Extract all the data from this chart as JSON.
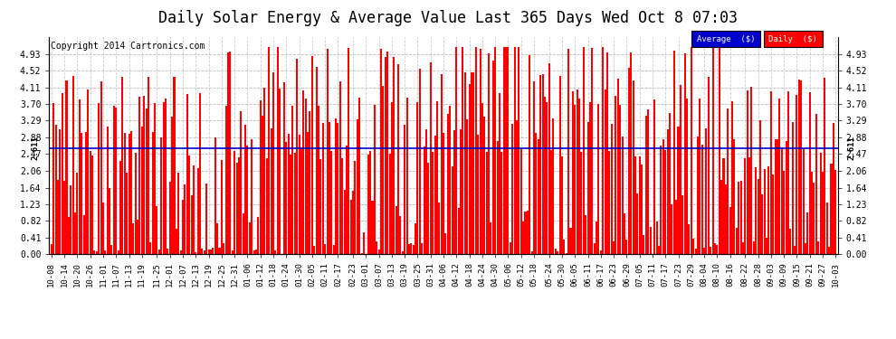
{
  "title": "Daily Solar Energy & Average Value Last 365 Days Wed Oct 8 07:03",
  "copyright": "Copyright 2014 Cartronics.com",
  "average_value": 2.61,
  "average_label": "2.611",
  "ylim": [
    0.0,
    5.34
  ],
  "yticks": [
    0.0,
    0.41,
    0.82,
    1.23,
    1.64,
    2.06,
    2.47,
    2.88,
    3.29,
    3.7,
    4.11,
    4.52,
    4.93
  ],
  "bar_color": "#ff0000",
  "avg_line_color": "#0000cc",
  "background_color": "#ffffff",
  "plot_bg_color": "#ffffff",
  "legend_avg_color": "#0000cc",
  "legend_daily_color": "#ff0000",
  "title_fontsize": 12,
  "xlabel_dates": [
    "10-08",
    "10-14",
    "10-20",
    "10-26",
    "11-01",
    "11-07",
    "11-13",
    "11-19",
    "11-25",
    "12-01",
    "12-07",
    "12-13",
    "12-19",
    "12-25",
    "12-31",
    "01-06",
    "01-12",
    "01-18",
    "01-24",
    "01-30",
    "02-05",
    "02-11",
    "02-17",
    "02-23",
    "03-01",
    "03-07",
    "03-13",
    "03-19",
    "03-25",
    "03-31",
    "04-06",
    "04-12",
    "04-18",
    "04-24",
    "04-30",
    "05-06",
    "05-12",
    "05-18",
    "05-24",
    "05-30",
    "06-05",
    "06-11",
    "06-17",
    "06-23",
    "06-29",
    "07-05",
    "07-11",
    "07-17",
    "07-23",
    "07-29",
    "08-04",
    "08-10",
    "08-16",
    "08-22",
    "08-28",
    "09-03",
    "09-09",
    "09-15",
    "09-21",
    "09-27",
    "10-03"
  ],
  "num_bars": 365
}
